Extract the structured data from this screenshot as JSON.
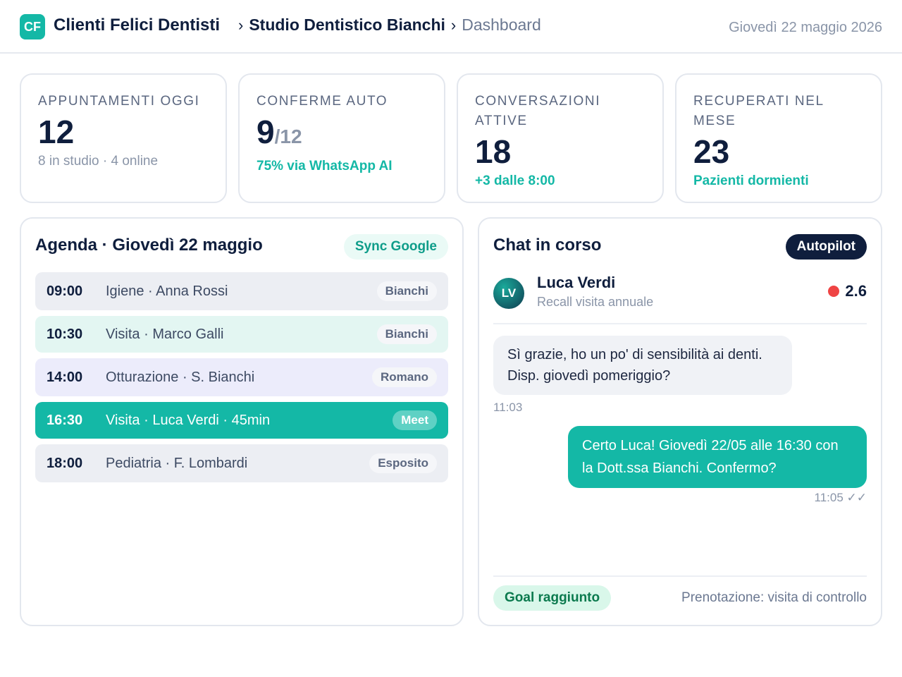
{
  "header": {
    "logo_initials": "CF",
    "brand": "Clienti Felici Dentisti",
    "breadcrumb": {
      "studio": "Studio Dentistico Bianchi",
      "page": "Dashboard",
      "separator": "›"
    },
    "date": "Giovedì 22 maggio 2026"
  },
  "stats": [
    {
      "label": "APPUNTAMENTI OGGI",
      "value": "12",
      "sub": "8 in studio · 4 online"
    },
    {
      "label": "CONFERME AUTO",
      "value": "9",
      "denominator": "/12",
      "sub": "75% via WhatsApp AI"
    },
    {
      "label": "CONVERSAZIONI ATTIVE",
      "value": "18",
      "sub": "+3 dalle 8:00"
    },
    {
      "label": "RECUPERATI NEL MESE",
      "value": "23",
      "sub": "Pazienti dormienti"
    }
  ],
  "agenda": {
    "title": "Agenda · Giovedì 22 maggio",
    "sync_label": "Sync Google",
    "slots": [
      {
        "time": "09:00",
        "desc": "Igiene · Anna Rossi",
        "tag": "Bianchi"
      },
      {
        "time": "10:30",
        "desc": "Visita · Marco Galli",
        "tag": "Bianchi"
      },
      {
        "time": "14:00",
        "desc": "Otturazione · S. Bianchi",
        "tag": "Romano"
      },
      {
        "time": "16:30",
        "desc": "Visita · Luca Verdi · 45min",
        "tag": "Meet"
      },
      {
        "time": "18:00",
        "desc": "Pediatria · F. Lombardi",
        "tag": "Esposito"
      }
    ]
  },
  "chat": {
    "title": "Chat in corso",
    "autopilot_label": "Autopilot",
    "contact": {
      "initials": "LV",
      "name": "Luca Verdi",
      "subtitle": "Recall visita annuale",
      "score": "2.6"
    },
    "messages": [
      {
        "text": "Sì grazie, ho un po' di sensibilità ai denti. Disp. giovedì pomeriggio?",
        "time": "11:03"
      },
      {
        "text": "Certo Luca! Giovedì 22/05 alle 16:30 con la Dott.ssa Bianchi. Confermo?",
        "time": "11:05 ✓✓"
      }
    ],
    "goal_label": "Goal raggiunto",
    "outcome": "Prenotazione: visita di controllo"
  },
  "colors": {
    "accent": "#14b8a6",
    "navy": "#0f1e3d",
    "status_dot": "#ef4444"
  }
}
